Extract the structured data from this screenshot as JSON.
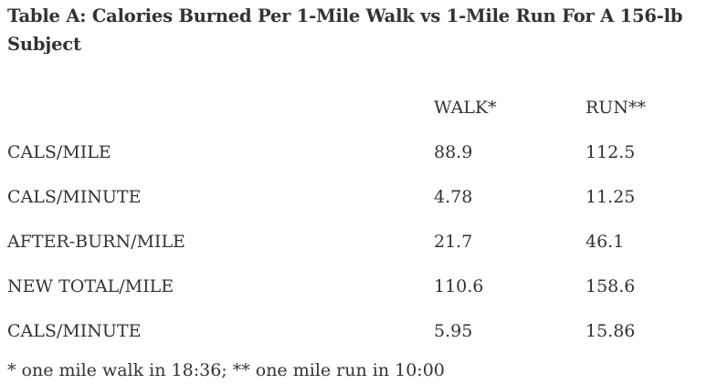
{
  "title": "Table A: Calories Burned Per 1-Mile Walk vs 1-Mile Run For A 156-lb Subject",
  "table": {
    "headers": [
      "",
      "WALK*",
      "RUN**"
    ],
    "rows": [
      {
        "label": "CALS/MILE",
        "walk": "88.9",
        "run": "112.5"
      },
      {
        "label": "CALS/MINUTE",
        "walk": "4.78",
        "run": "11.25"
      },
      {
        "label": "AFTER-BURN/MILE",
        "walk": "21.7",
        "run": "46.1"
      },
      {
        "label": "NEW TOTAL/MILE",
        "walk": "110.6",
        "run": "158.6"
      },
      {
        "label": "CALS/MINUTE",
        "walk": "5.95",
        "run": "15.86"
      }
    ]
  },
  "footnote": "* one mile walk in 18:36; ** one mile run in 10:00"
}
